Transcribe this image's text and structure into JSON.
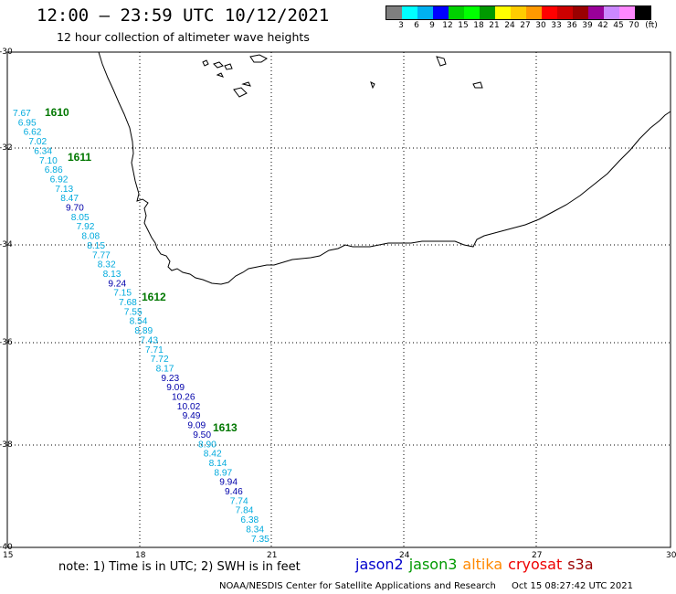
{
  "header": {
    "title": "12:00 – 23:59 UTC 10/12/2021",
    "subtitle": "12 hour collection of altimeter wave heights"
  },
  "colorbar": {
    "colors": [
      "#7f7f7f",
      "#00ffff",
      "#00b0f0",
      "#0000ff",
      "#00d000",
      "#00ff00",
      "#009900",
      "#ffff00",
      "#ffcc00",
      "#ff9900",
      "#ff0000",
      "#cc0000",
      "#990000",
      "#990099",
      "#cc88ff",
      "#ff88ff",
      "#000000"
    ],
    "labels": [
      "3",
      "6",
      "9",
      "12",
      "15",
      "18",
      "21",
      "24",
      "27",
      "30",
      "33",
      "36",
      "39",
      "42",
      "45",
      "70",
      "(ft)"
    ]
  },
  "map": {
    "lat_labels": [
      "-30",
      "-32",
      "-34",
      "-36",
      "-38",
      "-40"
    ],
    "lon_labels": [
      "15",
      "18",
      "21",
      "24",
      "27",
      "30"
    ],
    "pass_labels": [
      "1610",
      "1611",
      "1612",
      "1613"
    ],
    "pass_color": "#007700",
    "swh_values": [
      "7.67",
      "6.95",
      "6.62",
      "7.02",
      "6.34",
      "7.10",
      "6.86",
      "6.92",
      "7.13",
      "8.47",
      "9.70",
      "8.05",
      "7.92",
      "8.08",
      "8.15",
      "7.77",
      "8.32",
      "8.13",
      "9.24",
      "7.15",
      "7.68",
      "7.55",
      "8.54",
      "8.89",
      "7.43",
      "7.71",
      "7.72",
      "8.17",
      "9.23",
      "9.09",
      "10.26",
      "10.02",
      "9.49",
      "9.09",
      "9.50",
      "8.90",
      "8.42",
      "8.14",
      "8.97",
      "9.94",
      "9.46",
      "7.74",
      "7.84",
      "6.38",
      "8.34",
      "7.35"
    ],
    "swh_colors": {
      "light": "#00aadd",
      "dark": "#0000aa"
    }
  },
  "footer": {
    "note": "note: 1) Time is in UTC; 2) SWH is in feet",
    "legend": [
      {
        "label": "jason2",
        "color": "#0000cc"
      },
      {
        "label": "jason3",
        "color": "#009900"
      },
      {
        "label": "altika",
        "color": "#ff8800"
      },
      {
        "label": "cryosat",
        "color": "#ee0000"
      },
      {
        "label": "s3a",
        "color": "#990000"
      }
    ],
    "credit": "NOAA/NESDIS Center for Satellite Applications and Research",
    "timestamp": "Oct 15 08:27:42 UTC 2021"
  }
}
